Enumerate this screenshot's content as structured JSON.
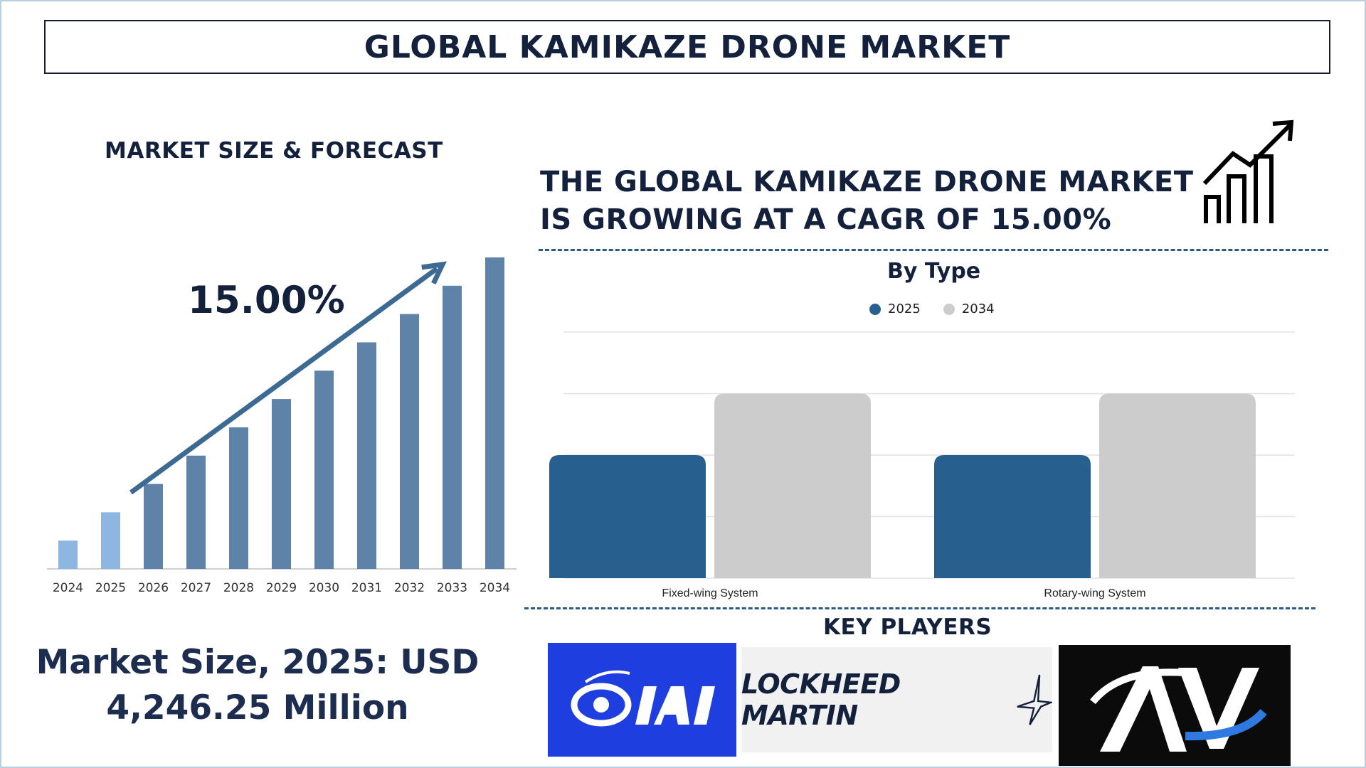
{
  "title": "GLOBAL KAMIKAZE DRONE MARKET",
  "left_panel": {
    "subtitle": "MARKET SIZE & FORECAST",
    "cagr_label": "15.00%",
    "market_size_line1": "Market Size, 2025: USD",
    "market_size_line2": "4,246.25 Million"
  },
  "right_panel": {
    "headline_line1": "THE GLOBAL KAMIKAZE DRONE MARKET",
    "headline_line2": "IS GROWING AT A CAGR OF 15.00%",
    "growth_icon": "growth-chart-icon",
    "section_title": "By Type",
    "key_players_title": "KEY PLAYERS",
    "logos": [
      {
        "name": "IAI",
        "text": "IAI",
        "background": "#1f3ee0"
      },
      {
        "name": "Lockheed Martin",
        "text": "LOCKHEED MARTIN",
        "background": "#f1f1f1"
      },
      {
        "name": "AV",
        "text": "AV",
        "background": "#0b0b0b"
      }
    ]
  },
  "colors": {
    "title_text": "#14213d",
    "bar_light": "#8db6e0",
    "bar_main": "#5f83a8",
    "arrow": "#3c6a92",
    "series_2025": "#27608f",
    "series_2034": "#cccccc",
    "dashed_divider": "#2b5a85"
  },
  "chart_data": [
    {
      "type": "bar",
      "categories": [
        "2024",
        "2025",
        "2026",
        "2027",
        "2028",
        "2029",
        "2030",
        "2031",
        "2032",
        "2033",
        "2034"
      ],
      "values": [
        1,
        2,
        3,
        4,
        5,
        6,
        7,
        8,
        9,
        10,
        11
      ],
      "highlighted_categories": [
        "2024",
        "2025"
      ],
      "ylim": [
        0,
        11
      ],
      "grid": false,
      "annotation": "15.00%"
    },
    {
      "type": "bar",
      "title": "By Type",
      "categories": [
        "Fixed-wing System",
        "Rotary-wing System"
      ],
      "series": [
        {
          "name": "2025",
          "values": [
            2,
            2
          ]
        },
        {
          "name": "2034",
          "values": [
            3,
            3
          ]
        }
      ],
      "ylim": [
        0,
        4
      ],
      "grid": true,
      "legend_position": "top"
    }
  ]
}
